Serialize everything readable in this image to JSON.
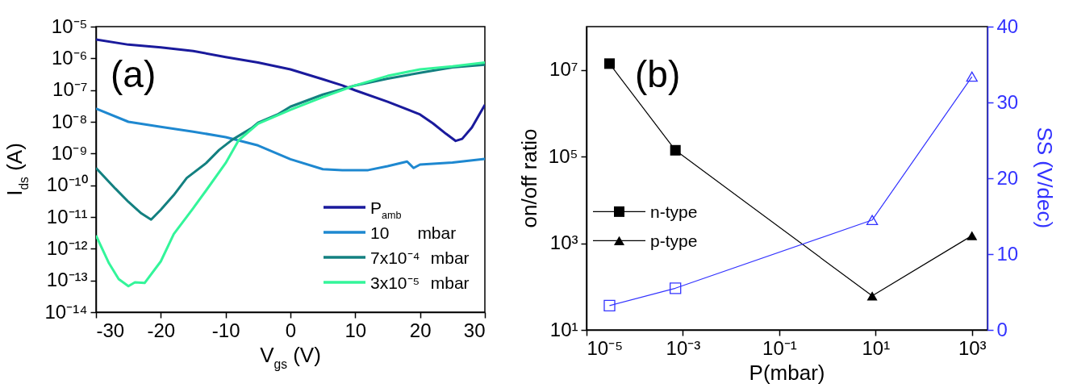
{
  "chart_data": [
    {
      "type": "line",
      "xlabel": "V$_{gs}$ (V)",
      "ylabel": "I$_{ds}$ (A)",
      "log": "y",
      "legend": "bottom right",
      "annotations": [
        "(a)"
      ],
      "xlim": [
        -30,
        30
      ],
      "xticks": [
        -30,
        -20,
        -10,
        0,
        10,
        20,
        30
      ],
      "ylim": [
        1e-14,
        1e-05
      ],
      "yticks": [
        {
          "value": 1e-14,
          "label": "10⁻¹⁴"
        },
        {
          "value": 1e-13,
          "label": "10⁻¹³"
        },
        {
          "value": 1e-12,
          "label": "10⁻¹²"
        },
        {
          "value": 1e-11,
          "label": "10⁻¹¹"
        },
        {
          "value": 1e-10,
          "label": "10⁻¹⁰"
        },
        {
          "value": 1e-09,
          "label": "10⁻⁹"
        },
        {
          "value": 1e-08,
          "label": "10⁻⁸"
        },
        {
          "value": 1e-07,
          "label": "10⁻⁷"
        },
        {
          "value": 1e-06,
          "label": "10⁻⁶"
        },
        {
          "value": 1e-05,
          "label": "10⁻⁵"
        }
      ],
      "series": [
        {
          "name": "P$_{amb}$",
          "color": "#1a1a9c",
          "x": [
            -30,
            -25,
            -20,
            -15,
            -10,
            -5,
            0,
            5,
            8,
            10,
            15,
            20,
            22,
            24,
            25.5,
            26.5,
            28,
            30
          ],
          "values": [
            3.9e-06,
            2.7e-06,
            2.2e-06,
            1.7e-06,
            1.1e-06,
            7.4e-07,
            4.5e-07,
            2.2e-07,
            1.4e-07,
            9.8e-08,
            4.3e-08,
            1.7e-08,
            8.9e-09,
            4.2e-09,
            2.5e-09,
            2.9e-09,
            6.6e-09,
            3.4e-08
          ]
        },
        {
          "name": "10      mbar",
          "color": "#1e88d0",
          "x": [
            -30,
            -25,
            -20,
            -15,
            -10,
            -5,
            0,
            5,
            8,
            12,
            15,
            18,
            19,
            20,
            25,
            30
          ],
          "values": [
            2.6e-08,
            1e-08,
            6.9e-09,
            4.9e-09,
            3.3e-09,
            1.8e-09,
            6.6e-10,
            3.2e-10,
            3e-10,
            3e-10,
            4e-10,
            5.6e-10,
            3.5e-10,
            4.5e-10,
            5.2e-10,
            6.8e-10
          ]
        },
        {
          "name": "7x10⁻⁴ mbar",
          "color": "#138080",
          "x": [
            -30,
            -27,
            -25,
            -23,
            -21.5,
            -20,
            -18,
            -16,
            -13,
            -11,
            -9,
            -6,
            -5,
            -2,
            0,
            5,
            10,
            15,
            20,
            25,
            30
          ],
          "values": [
            3.5e-10,
            7.8e-11,
            3e-11,
            1.3e-11,
            8.3e-12,
            1.7e-11,
            4.9e-11,
            1.7e-10,
            5e-10,
            1.3e-09,
            2.7e-09,
            6.3e-09,
            9.3e-09,
            1.7e-08,
            3e-08,
            7.2e-08,
            1.4e-07,
            2.3e-07,
            3.5e-07,
            5.2e-07,
            6.3e-07
          ]
        },
        {
          "name": "3x10⁻⁵ mbar",
          "color": "#33f59a",
          "x": [
            -30,
            -28,
            -26.5,
            -25,
            -24,
            -22.5,
            -20,
            -18,
            -15,
            -13,
            -10,
            -8,
            -5,
            0,
            5,
            10,
            15,
            20,
            25,
            30
          ],
          "values": [
            2.6e-12,
            3.5e-13,
            1.1e-13,
            6.6e-14,
            8.7e-14,
            8.3e-14,
            4e-13,
            2.9e-12,
            1.9e-11,
            6.9e-11,
            5e-10,
            2.6e-09,
            8.7e-09,
            2.4e-08,
            6e-08,
            1.4e-07,
            2.8e-07,
            4.5e-07,
            5.6e-07,
            7.4e-07
          ]
        }
      ]
    },
    {
      "type": "line",
      "xlabel": "P(mbar)",
      "ylabel": "on/off ratio",
      "y2label": "SS (V/dec)",
      "log": "xy",
      "legend": "left",
      "annotations": [
        "(b)"
      ],
      "xlim": [
        1e-05,
        2100
      ],
      "xticks": [
        {
          "value": 1e-05,
          "label": "10⁻⁵"
        },
        {
          "value": 0.001,
          "label": "10⁻³"
        },
        {
          "value": 0.1,
          "label": "10⁻¹"
        },
        {
          "value": 10,
          "label": "10¹"
        },
        {
          "value": 1000,
          "label": "10³"
        }
      ],
      "ylim": [
        10,
        100000000.0
      ],
      "yticks": [
        {
          "value": 10,
          "label": "10¹"
        },
        {
          "value": 1000,
          "label": "10³"
        },
        {
          "value": 100000,
          "label": "10⁵"
        },
        {
          "value": 10000000,
          "label": "10⁷"
        }
      ],
      "y2lim": [
        0,
        40
      ],
      "y2ticks": [
        0,
        10,
        20,
        30,
        40
      ],
      "series": [
        {
          "type": "line",
          "color": "#000000",
          "marker": "none",
          "x": [
            3e-05,
            0.0007,
            8.5,
            1000
          ],
          "values": [
            14000000.0,
            140000.0,
            61,
            1500
          ]
        },
        {
          "type": "scatter",
          "name": "n-type",
          "color": "#000000",
          "marker": "square",
          "x": [
            3e-05,
            0.0007
          ],
          "values": [
            14000000.0,
            140000.0
          ]
        },
        {
          "type": "scatter",
          "name": "p-type",
          "color": "#000000",
          "marker": "triangle",
          "x": [
            8.5,
            1000
          ],
          "values": [
            61,
            1500
          ]
        },
        {
          "type": "line",
          "axis": "y2",
          "color": "#3333ff",
          "marker": "none",
          "x": [
            3e-05,
            0.0007,
            8.5,
            1000
          ],
          "values": [
            3.2,
            5.5,
            14.5,
            33.4
          ]
        },
        {
          "type": "scatter",
          "axis": "y2",
          "color": "#3333ff",
          "marker": "square",
          "x": [
            3e-05,
            0.0007
          ],
          "values": [
            3.2,
            5.5
          ]
        },
        {
          "type": "scatter",
          "axis": "y2",
          "color": "#3333ff",
          "marker": "triangle",
          "x": [
            8.5,
            1000
          ],
          "values": [
            14.5,
            33.4
          ]
        }
      ]
    }
  ]
}
